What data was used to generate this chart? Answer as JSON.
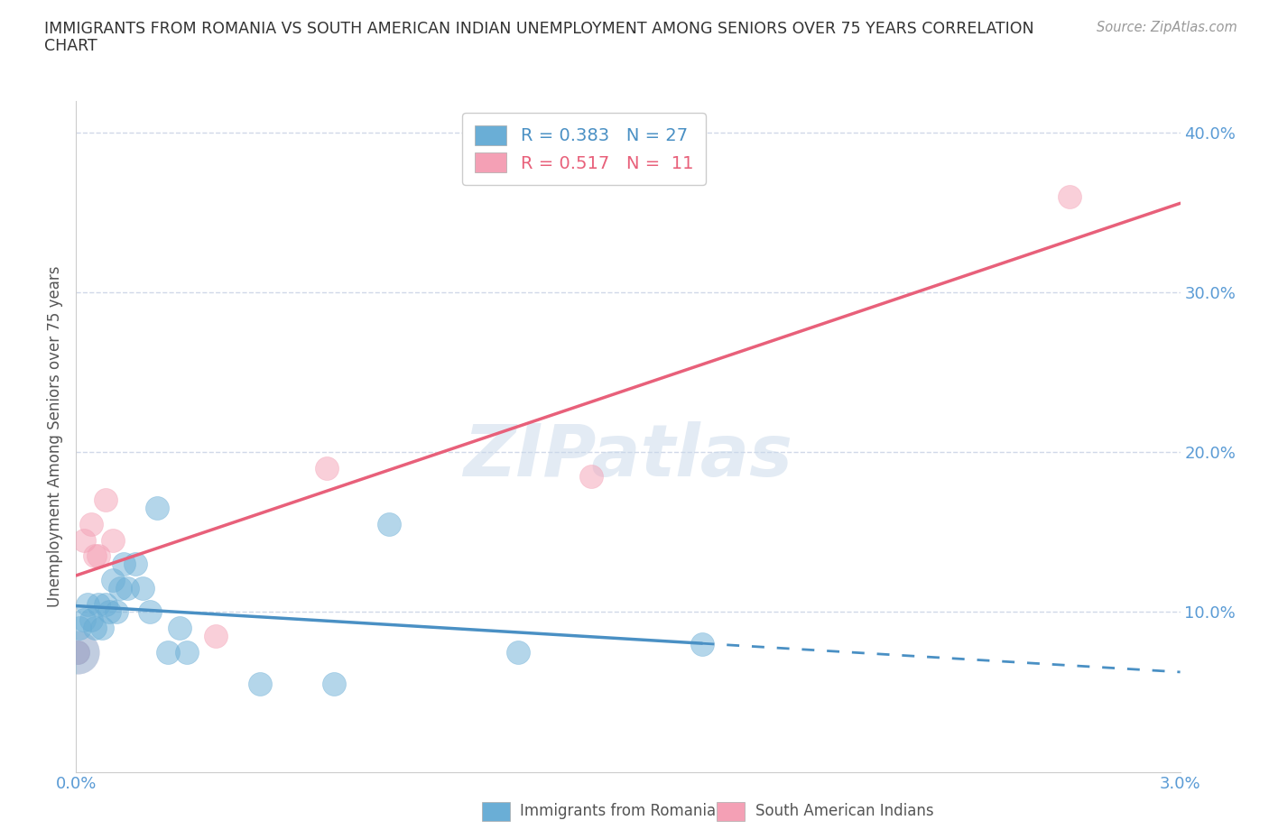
{
  "title_line1": "IMMIGRANTS FROM ROMANIA VS SOUTH AMERICAN INDIAN UNEMPLOYMENT AMONG SENIORS OVER 75 YEARS CORRELATION",
  "title_line2": "CHART",
  "source": "Source: ZipAtlas.com",
  "ylabel": "Unemployment Among Seniors over 75 years",
  "xlim": [
    0.0,
    0.03
  ],
  "ylim": [
    0.0,
    0.42
  ],
  "xticks": [
    0.0,
    0.005,
    0.01,
    0.015,
    0.02,
    0.025,
    0.03
  ],
  "xticklabels": [
    "0.0%",
    "",
    "",
    "",
    "",
    "",
    "3.0%"
  ],
  "yticks": [
    0.0,
    0.1,
    0.2,
    0.3,
    0.4
  ],
  "yticklabels": [
    "",
    "10.0%",
    "20.0%",
    "30.0%",
    "40.0%"
  ],
  "romania_color": "#6aaed6",
  "sai_color": "#f4a0b5",
  "romania_color_dark": "#4a90c4",
  "sai_color_dark": "#e8607a",
  "romania_R": 0.383,
  "romania_N": 27,
  "sai_R": 0.517,
  "sai_N": 11,
  "romania_x": [
    5e-05,
    0.0001,
    0.0002,
    0.0003,
    0.0004,
    0.0005,
    0.0006,
    0.0007,
    0.0008,
    0.0009,
    0.001,
    0.0011,
    0.0012,
    0.0013,
    0.0014,
    0.0016,
    0.0018,
    0.002,
    0.0022,
    0.0025,
    0.0028,
    0.003,
    0.005,
    0.007,
    0.0085,
    0.012,
    0.017
  ],
  "romania_y": [
    0.075,
    0.09,
    0.095,
    0.105,
    0.095,
    0.09,
    0.105,
    0.09,
    0.105,
    0.1,
    0.12,
    0.1,
    0.115,
    0.13,
    0.115,
    0.13,
    0.115,
    0.1,
    0.165,
    0.075,
    0.09,
    0.075,
    0.055,
    0.055,
    0.155,
    0.075,
    0.08
  ],
  "sai_x": [
    5e-05,
    0.0002,
    0.0004,
    0.0005,
    0.0006,
    0.0008,
    0.001,
    0.0038,
    0.0068,
    0.014,
    0.027
  ],
  "sai_y": [
    0.075,
    0.145,
    0.155,
    0.135,
    0.135,
    0.17,
    0.145,
    0.085,
    0.19,
    0.185,
    0.36
  ],
  "watermark": "ZIPatlas",
  "background_color": "#ffffff",
  "grid_color": "#d0d8e8",
  "romania_line_solid_end": 0.017,
  "romania_line_dash_start": 0.017,
  "romania_line_end": 0.03,
  "sai_line_start": 0.0,
  "sai_line_end": 0.03,
  "legend_labels": [
    "R = 0.383   N = 27",
    "R = 0.517   N =  11"
  ]
}
